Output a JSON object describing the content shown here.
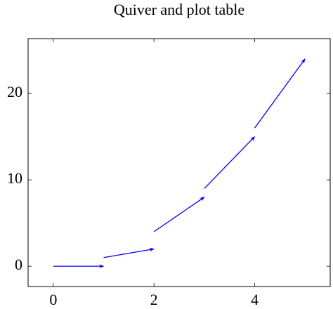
{
  "chart_data": {
    "type": "quiver",
    "title": "Quiver and plot table",
    "x": [
      0,
      1,
      2,
      3,
      4
    ],
    "y": [
      0,
      1,
      4,
      9,
      16
    ],
    "u": [
      1,
      1,
      1,
      1,
      1
    ],
    "v": [
      0,
      1,
      4,
      6,
      8
    ],
    "color": "#0000ff",
    "xlim": [
      -0.5,
      5.5
    ],
    "ylim": [
      -2.35,
      26.35
    ],
    "xticks": [
      0,
      2,
      4
    ],
    "yticks": [
      0,
      10,
      20
    ],
    "grid": false
  }
}
